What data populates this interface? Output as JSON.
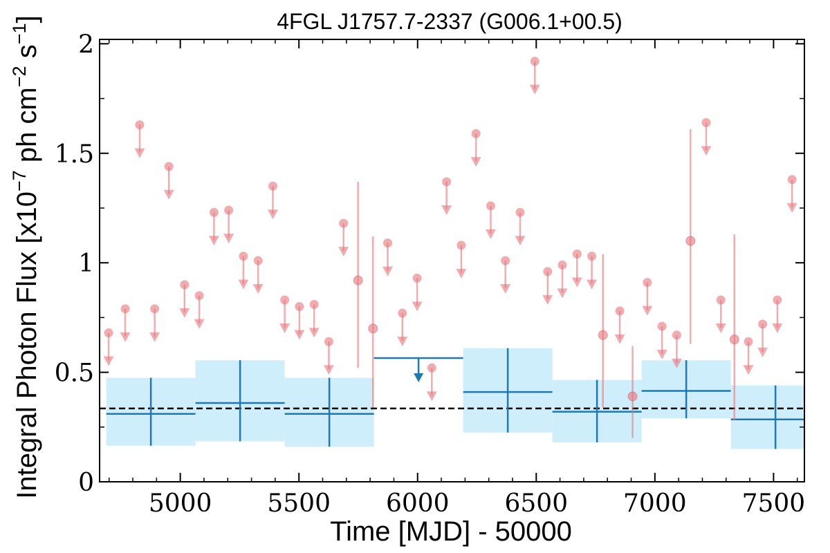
{
  "chart_data": {
    "type": "scatter",
    "title": "4FGL J1757.7-2337 (G006.1+00.5)",
    "xlabel": "Time [MJD] - 50000",
    "ylabel": "Integral Photon Flux [x10^-7 ph cm^-2 s^-1]",
    "ylabel_parts": {
      "pre": "Integral Photon Flux [x10",
      "exp1": "−7",
      "mid": " ph cm",
      "exp2": "−2",
      "mid2": " s",
      "exp3": "−1",
      "post": "]"
    },
    "xlim": [
      4660,
      7630
    ],
    "ylim": [
      0,
      2.02
    ],
    "xticks": [
      5000,
      5500,
      6000,
      6500,
      7000,
      7500
    ],
    "xtick_labels": [
      "5000",
      "5500",
      "6000",
      "6500",
      "7000",
      "7500"
    ],
    "yticks": [
      0,
      0.5,
      1,
      1.5,
      2
    ],
    "ytick_labels": [
      "0",
      "0.5",
      "1",
      "1.5",
      "2"
    ],
    "colors": {
      "short_bins": "#e8747c",
      "long_bins": "#1f77b4",
      "long_bins_band": "#cfeefc",
      "mean_line": "#000000"
    },
    "mean_flux": 0.335,
    "short_bins_points": [
      {
        "x": 5749,
        "y": 0.92,
        "ylo": 0.52,
        "yhi": 1.37
      },
      {
        "x": 5812,
        "y": 0.7,
        "ylo": 0.34,
        "yhi": 1.12
      },
      {
        "x": 6781,
        "y": 0.67,
        "ylo": 0.34,
        "yhi": 1.04
      },
      {
        "x": 6906,
        "y": 0.39,
        "ylo": 0.2,
        "yhi": 0.62
      },
      {
        "x": 7150,
        "y": 1.1,
        "ylo": 0.63,
        "yhi": 1.61
      },
      {
        "x": 7335,
        "y": 0.65,
        "ylo": 0.28,
        "yhi": 1.13
      }
    ],
    "short_bins_upper_limits": [
      {
        "x": 4698,
        "y": 0.68
      },
      {
        "x": 4768,
        "y": 0.79
      },
      {
        "x": 4829,
        "y": 1.63
      },
      {
        "x": 4892,
        "y": 0.79
      },
      {
        "x": 4952,
        "y": 1.44
      },
      {
        "x": 5018,
        "y": 0.9
      },
      {
        "x": 5080,
        "y": 0.85
      },
      {
        "x": 5142,
        "y": 1.23
      },
      {
        "x": 5204,
        "y": 1.24
      },
      {
        "x": 5266,
        "y": 1.03
      },
      {
        "x": 5328,
        "y": 1.01
      },
      {
        "x": 5390,
        "y": 1.35
      },
      {
        "x": 5440,
        "y": 0.83
      },
      {
        "x": 5502,
        "y": 0.8
      },
      {
        "x": 5564,
        "y": 0.81
      },
      {
        "x": 5626,
        "y": 0.64
      },
      {
        "x": 5688,
        "y": 1.18
      },
      {
        "x": 5874,
        "y": 1.09
      },
      {
        "x": 5936,
        "y": 0.77
      },
      {
        "x": 5998,
        "y": 0.93
      },
      {
        "x": 6060,
        "y": 0.52
      },
      {
        "x": 6122,
        "y": 1.37
      },
      {
        "x": 6184,
        "y": 1.08
      },
      {
        "x": 6246,
        "y": 1.59
      },
      {
        "x": 6308,
        "y": 1.26
      },
      {
        "x": 6370,
        "y": 1.01
      },
      {
        "x": 6432,
        "y": 1.23
      },
      {
        "x": 6494,
        "y": 1.92
      },
      {
        "x": 6548,
        "y": 0.96
      },
      {
        "x": 6610,
        "y": 0.99
      },
      {
        "x": 6672,
        "y": 1.04
      },
      {
        "x": 6734,
        "y": 1.03
      },
      {
        "x": 6852,
        "y": 0.78
      },
      {
        "x": 6968,
        "y": 0.91
      },
      {
        "x": 7030,
        "y": 0.71
      },
      {
        "x": 7092,
        "y": 0.67
      },
      {
        "x": 7216,
        "y": 1.64
      },
      {
        "x": 7278,
        "y": 0.83
      },
      {
        "x": 7394,
        "y": 0.64
      },
      {
        "x": 7454,
        "y": 0.72
      },
      {
        "x": 7516,
        "y": 0.83
      },
      {
        "x": 7578,
        "y": 1.38
      }
    ],
    "long_bins_points": [
      {
        "x0": 4688,
        "x1": 5064,
        "y": 0.31,
        "ylo": 0.165,
        "yhi": 0.475
      },
      {
        "x0": 5064,
        "x1": 5440,
        "y": 0.36,
        "ylo": 0.185,
        "yhi": 0.555
      },
      {
        "x0": 5440,
        "x1": 5816,
        "y": 0.31,
        "ylo": 0.16,
        "yhi": 0.475
      },
      {
        "x0": 6192,
        "x1": 6568,
        "y": 0.41,
        "ylo": 0.225,
        "yhi": 0.61
      },
      {
        "x0": 6568,
        "x1": 6944,
        "y": 0.32,
        "ylo": 0.18,
        "yhi": 0.465
      },
      {
        "x0": 6944,
        "x1": 7320,
        "y": 0.415,
        "ylo": 0.29,
        "yhi": 0.555
      },
      {
        "x0": 7320,
        "x1": 7696,
        "y": 0.285,
        "ylo": 0.15,
        "yhi": 0.44
      }
    ],
    "long_bins_upper_limits": [
      {
        "x0": 5816,
        "x1": 6192,
        "y": 0.565
      }
    ],
    "grid": false,
    "legend": "none"
  }
}
